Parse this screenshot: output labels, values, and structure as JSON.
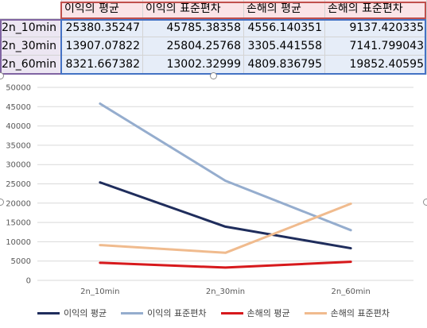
{
  "table": {
    "headers": [
      "이익의 평균",
      "이익의 표준편차",
      "손해의 평균",
      "손해의 표준편차"
    ],
    "rows": [
      {
        "label": "2n_10min",
        "values": [
          "25380.35247",
          "45785.38358",
          "4556.140351",
          "9137.420335"
        ]
      },
      {
        "label": "2n_30min",
        "values": [
          "13907.07822",
          "25804.25768",
          "3305.441558",
          "7141.799043"
        ]
      },
      {
        "label": "2n_60min",
        "values": [
          "8321.667382",
          "13002.32999",
          "4809.836795",
          "19852.40595"
        ]
      }
    ]
  },
  "chart_data": {
    "type": "line",
    "categories": [
      "2n_10min",
      "2n_30min",
      "2n_60min"
    ],
    "ylim": [
      0,
      50000
    ],
    "yticks": [
      "0",
      "5000",
      "10000",
      "15000",
      "20000",
      "25000",
      "30000",
      "35000",
      "40000",
      "45000",
      "50000"
    ],
    "grid": true,
    "legend_position": "bottom",
    "series": [
      {
        "name": "이익의 평균",
        "values": [
          25380.35247,
          13907.07822,
          8321.667382
        ],
        "color": "#1f2d5c"
      },
      {
        "name": "이익의 표준편차",
        "values": [
          45785.38358,
          25804.25768,
          13002.32999
        ],
        "color": "#95adce"
      },
      {
        "name": "손해의 평균",
        "values": [
          4556.140351,
          3305.441558,
          4809.836795
        ],
        "color": "#d7191c"
      },
      {
        "name": "손해의 표준편차",
        "values": [
          9137.420335,
          7141.799043,
          19852.40595
        ],
        "color": "#f0bb8e"
      }
    ]
  }
}
